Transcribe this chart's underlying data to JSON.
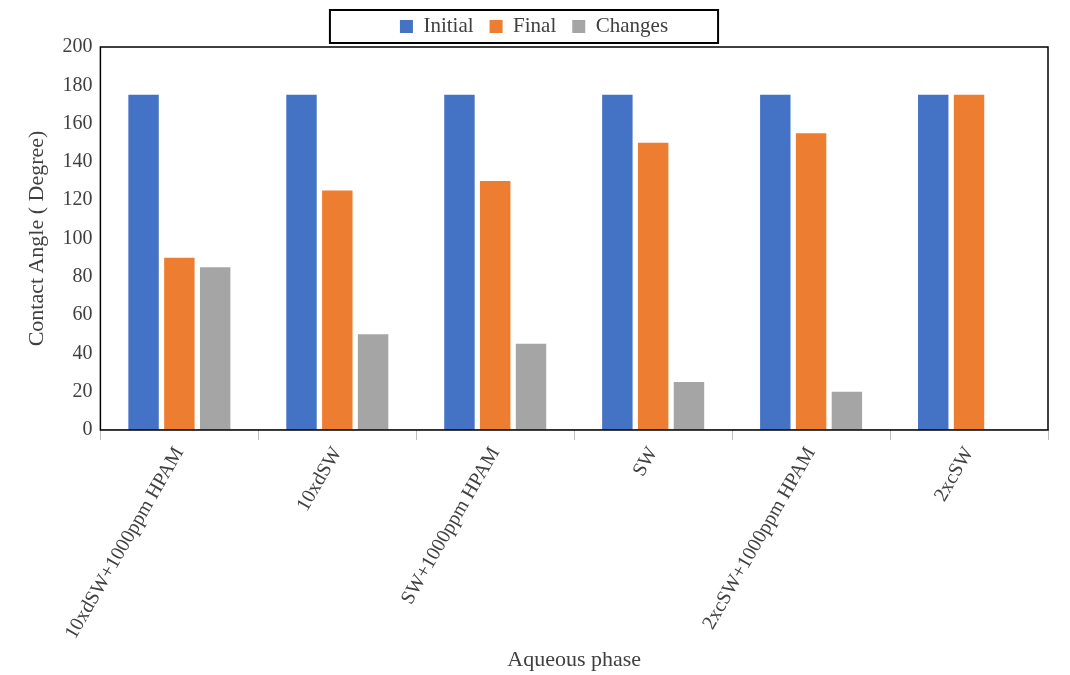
{
  "chart_data": {
    "type": "bar",
    "xlabel": "Aqueous phase",
    "ylabel": "Contact Angle ( Degree)",
    "categories": [
      "10xdSW+1000ppm HPAM",
      "10xdSW",
      "SW+1000ppm HPAM",
      "SW",
      "2xcSW+1000ppm HPAM",
      "2xcSW"
    ],
    "series": [
      {
        "name": "Initial",
        "color": "#4472c4",
        "values": [
          175,
          175,
          175,
          175,
          175,
          175
        ]
      },
      {
        "name": "Final",
        "color": "#ed7d31",
        "values": [
          90,
          125,
          130,
          150,
          155,
          175
        ]
      },
      {
        "name": "Changes",
        "color": "#a5a5a5",
        "values": [
          85,
          50,
          45,
          25,
          20,
          0
        ]
      }
    ],
    "ylim": [
      0,
      200
    ],
    "yticks": [
      0,
      20,
      40,
      60,
      80,
      100,
      120,
      140,
      160,
      180,
      200
    ],
    "grid": false,
    "legend": "top"
  }
}
